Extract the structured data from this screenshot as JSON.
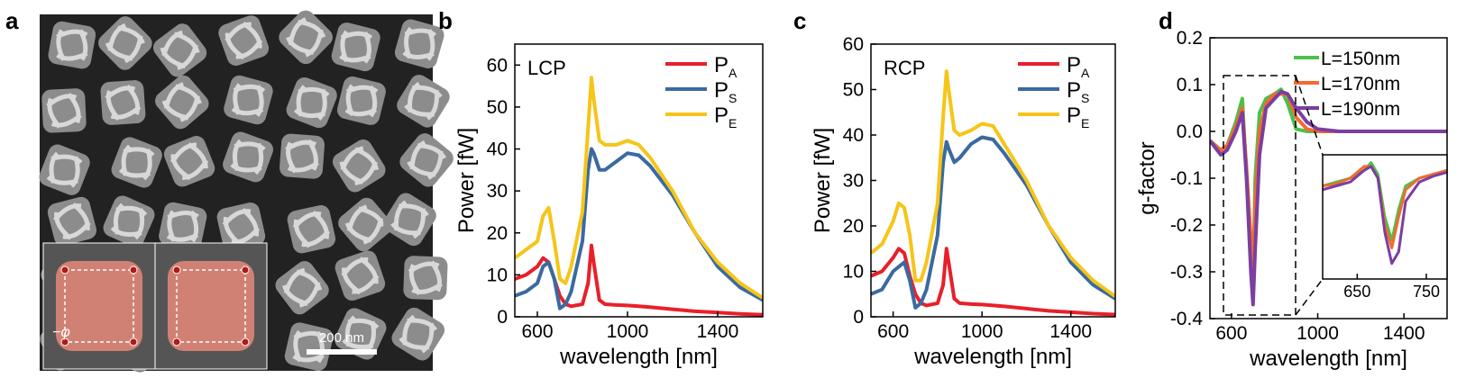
{
  "panel_labels": [
    "a",
    "b",
    "c",
    "d"
  ],
  "image": {
    "scale_bar": "200 nm",
    "angle_label": "−φ"
  },
  "chart_data": [
    {
      "type": "line",
      "annotation": "LCP",
      "x_label": "wavelength [nm]",
      "y_label": "Power [fW]",
      "x": [
        500,
        550,
        600,
        625,
        650,
        675,
        700,
        725,
        750,
        800,
        825,
        840,
        850,
        875,
        900,
        950,
        1000,
        1050,
        1100,
        1200,
        1300,
        1400,
        1500,
        1600
      ],
      "series": [
        {
          "name": "PA",
          "color": "#e8202a",
          "values": [
            9,
            10,
            12,
            14,
            13,
            9,
            5,
            3,
            2.5,
            3,
            8,
            17,
            13,
            4,
            3,
            2.8,
            2.7,
            2.5,
            2.3,
            1.8,
            1.3,
            1,
            0.7,
            0.5
          ]
        },
        {
          "name": "PS",
          "color": "#3a6aa0",
          "values": [
            5,
            6,
            8,
            12,
            13,
            9,
            2,
            3,
            6,
            18,
            35,
            40,
            39,
            35,
            35,
            37,
            39,
            38.5,
            36,
            29,
            20,
            12,
            7,
            4
          ]
        },
        {
          "name": "PE",
          "color": "#f5c518",
          "values": [
            14,
            16,
            18,
            24,
            26,
            18,
            9,
            8,
            12,
            25,
            45,
            57,
            52,
            42,
            41,
            41,
            42,
            41,
            38,
            30,
            20,
            13,
            8,
            4.5
          ]
        }
      ],
      "xlim": [
        500,
        1600
      ],
      "xticks": [
        600,
        1000,
        1400
      ],
      "ylim": [
        0,
        65
      ],
      "yticks": [
        0,
        10,
        20,
        30,
        40,
        50,
        60
      ],
      "legend": "upper right"
    },
    {
      "type": "line",
      "annotation": "RCP",
      "x_label": "wavelength [nm]",
      "y_label": "Power [fW]",
      "x": [
        500,
        550,
        600,
        625,
        650,
        675,
        700,
        725,
        750,
        800,
        825,
        840,
        850,
        875,
        900,
        950,
        1000,
        1050,
        1100,
        1200,
        1300,
        1400,
        1500,
        1600
      ],
      "series": [
        {
          "name": "PA",
          "color": "#e8202a",
          "values": [
            9,
            10,
            13,
            15,
            14,
            9,
            5,
            3,
            2.5,
            3,
            7,
            15,
            12,
            4,
            3,
            2.8,
            2.7,
            2.5,
            2.3,
            1.8,
            1.3,
            1,
            0.7,
            0.5
          ]
        },
        {
          "name": "PS",
          "color": "#3a6aa0",
          "values": [
            5,
            6,
            10,
            11,
            12,
            8,
            2,
            3,
            6,
            18,
            34,
            38.5,
            37,
            34,
            35,
            38,
            39.5,
            39,
            36,
            29,
            20,
            12,
            7,
            4
          ]
        },
        {
          "name": "PE",
          "color": "#f5c518",
          "values": [
            14,
            16,
            21,
            25,
            24,
            18,
            8,
            8,
            12,
            25,
            44,
            54,
            50,
            41,
            40,
            41,
            42.5,
            42,
            38,
            30,
            20,
            13,
            8,
            4.5
          ]
        }
      ],
      "xlim": [
        500,
        1600
      ],
      "xticks": [
        600,
        1000,
        1400
      ],
      "ylim": [
        0,
        60
      ],
      "yticks": [
        0,
        10,
        20,
        30,
        40,
        50,
        60
      ],
      "legend": "upper right"
    },
    {
      "type": "line",
      "x_label": "wavelength [nm]",
      "y_label": "g-factor",
      "x": [
        500,
        550,
        580,
        620,
        650,
        670,
        690,
        700,
        710,
        730,
        760,
        800,
        830,
        860,
        900,
        950,
        1000,
        1100,
        1200,
        1400,
        1600
      ],
      "series": [
        {
          "name": "L=150nm",
          "color": "#4cc04a",
          "values": [
            -0.02,
            -0.04,
            -0.03,
            0.02,
            0.07,
            -0.1,
            -0.25,
            -0.33,
            -0.1,
            0.04,
            0.07,
            0.08,
            0.09,
            0.06,
            0.005,
            0,
            0,
            0,
            0,
            0,
            0
          ]
        },
        {
          "name": "L=170nm",
          "color": "#f26a30",
          "values": [
            -0.02,
            -0.04,
            -0.03,
            0.01,
            0.05,
            -0.08,
            -0.23,
            -0.3,
            -0.15,
            0,
            0.06,
            0.08,
            0.08,
            0.08,
            0.03,
            0.005,
            0,
            0,
            0,
            0,
            0
          ]
        },
        {
          "name": "L=190nm",
          "color": "#7a3fa0",
          "values": [
            -0.02,
            -0.05,
            -0.04,
            0,
            0.04,
            -0.1,
            -0.3,
            -0.37,
            -0.25,
            -0.05,
            0.05,
            0.07,
            0.085,
            0.08,
            0.05,
            0.02,
            0.005,
            0,
            0,
            0,
            0
          ]
        }
      ],
      "xlim": [
        500,
        1600
      ],
      "xticks": [
        600,
        1000,
        1400
      ],
      "ylim": [
        -0.4,
        0.2
      ],
      "yticks": [
        {
          "value": -0.4,
          "label": "-0.4"
        },
        {
          "value": -0.3,
          "label": "-0.3"
        },
        {
          "value": -0.2,
          "label": "-0.2"
        },
        {
          "value": -0.1,
          "label": "-0.1"
        },
        {
          "value": 0,
          "label": "0.0"
        },
        {
          "value": 0.1,
          "label": "0.1"
        },
        {
          "value": 0.2,
          "label": "0.2"
        }
      ],
      "legend": "upper right"
    },
    {
      "type": "line",
      "inset": true,
      "x": [
        600,
        620,
        640,
        660,
        670,
        680,
        690,
        700,
        710,
        720,
        740,
        760,
        780
      ],
      "series": [
        {
          "color": "#4cc04a",
          "values": [
            -0.12,
            -0.11,
            -0.1,
            -0.08,
            -0.06,
            -0.09,
            -0.2,
            -0.26,
            -0.18,
            -0.12,
            -0.1,
            -0.09,
            -0.08
          ]
        },
        {
          "color": "#f26a30",
          "values": [
            -0.12,
            -0.115,
            -0.1,
            -0.07,
            -0.07,
            -0.1,
            -0.22,
            -0.28,
            -0.2,
            -0.13,
            -0.1,
            -0.09,
            -0.08
          ]
        },
        {
          "color": "#7a3fa0",
          "values": [
            -0.13,
            -0.12,
            -0.11,
            -0.08,
            -0.07,
            -0.1,
            -0.24,
            -0.32,
            -0.29,
            -0.16,
            -0.11,
            -0.095,
            -0.085
          ]
        }
      ],
      "xlim": [
        600,
        780
      ],
      "xticks": [
        650,
        750
      ],
      "ylim": [
        -0.36,
        -0.04
      ]
    }
  ]
}
